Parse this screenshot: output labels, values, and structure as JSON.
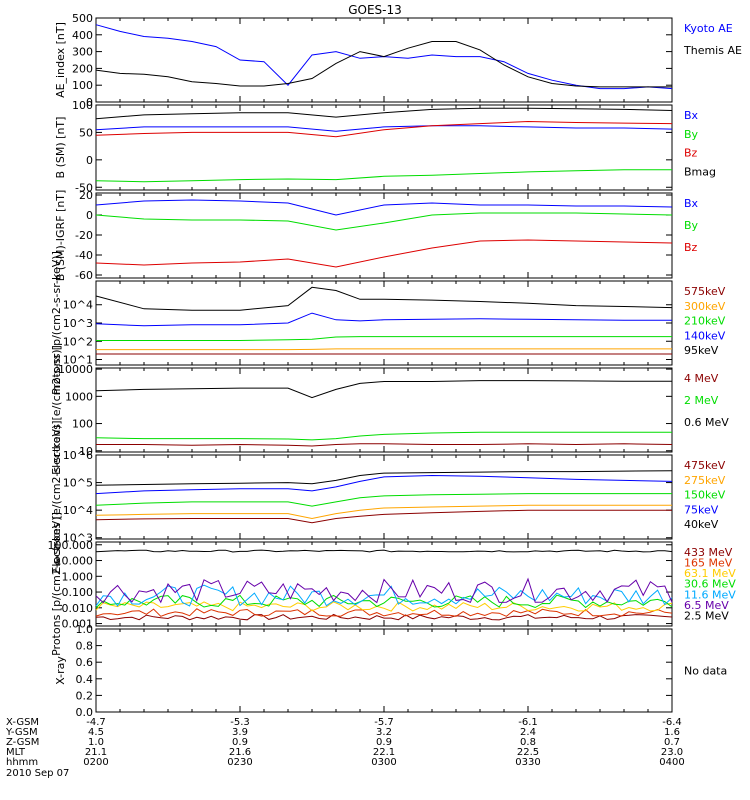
{
  "title": "GOES-13",
  "chart_data": [
    {
      "type": "line",
      "ylabel": "AE_index [nT]",
      "scale": "linear",
      "ylim": [
        0,
        500
      ],
      "yticks": [
        0,
        100,
        200,
        300,
        400,
        500
      ],
      "yticklabels": [
        "0",
        "100",
        "200",
        "300",
        "400",
        "500"
      ],
      "x": [
        0,
        5,
        10,
        15,
        20,
        25,
        30,
        35,
        40,
        45,
        50,
        55,
        60,
        65,
        70,
        75,
        80,
        85,
        90,
        95,
        100,
        105,
        110,
        115,
        120
      ],
      "series": [
        {
          "name": "Kyoto AE",
          "color": "#0000ff",
          "values": [
            460,
            420,
            390,
            380,
            360,
            330,
            250,
            240,
            100,
            280,
            300,
            260,
            270,
            260,
            280,
            270,
            270,
            240,
            170,
            130,
            100,
            80,
            80,
            90,
            80
          ]
        },
        {
          "name": "Themis AE",
          "color": "#000000",
          "values": [
            190,
            170,
            165,
            150,
            120,
            110,
            95,
            95,
            110,
            140,
            230,
            300,
            270,
            320,
            360,
            360,
            310,
            220,
            150,
            110,
            95,
            90,
            90,
            90,
            90
          ]
        }
      ]
    },
    {
      "type": "line",
      "ylabel": "B (SM) [nT]",
      "scale": "linear",
      "ylim": [
        -55,
        100
      ],
      "yticks": [
        -50,
        0,
        50,
        100
      ],
      "yticklabels": [
        "-50",
        "0",
        "50",
        "100"
      ],
      "x": [
        0,
        10,
        20,
        30,
        40,
        50,
        60,
        70,
        80,
        90,
        100,
        110,
        120
      ],
      "series": [
        {
          "name": "Bx",
          "color": "#0000ff",
          "values": [
            55,
            60,
            60,
            60,
            60,
            52,
            60,
            62,
            62,
            60,
            58,
            58,
            56
          ]
        },
        {
          "name": "By",
          "color": "#00dd00",
          "values": [
            -38,
            -40,
            -38,
            -36,
            -35,
            -36,
            -30,
            -28,
            -25,
            -22,
            -20,
            -18,
            -18
          ]
        },
        {
          "name": "Bz",
          "color": "#dd0000",
          "values": [
            45,
            48,
            50,
            50,
            50,
            42,
            55,
            62,
            66,
            70,
            68,
            67,
            66
          ]
        },
        {
          "name": "Bmag",
          "color": "#000000",
          "values": [
            75,
            82,
            84,
            86,
            86,
            78,
            86,
            92,
            94,
            94,
            93,
            92,
            90
          ]
        }
      ]
    },
    {
      "type": "line",
      "ylabel": "B (SM)-IGRF [nT]",
      "scale": "linear",
      "ylim": [
        -63,
        22
      ],
      "yticks": [
        -60,
        -40,
        -20,
        0,
        20
      ],
      "yticklabels": [
        "-60",
        "-40",
        "-20",
        "0",
        "20"
      ],
      "x": [
        0,
        10,
        20,
        30,
        40,
        50,
        60,
        70,
        80,
        90,
        100,
        110,
        120
      ],
      "series": [
        {
          "name": "Bx",
          "color": "#0000ff",
          "values": [
            10,
            14,
            15,
            14,
            12,
            0,
            10,
            12,
            10,
            10,
            9,
            9,
            8
          ]
        },
        {
          "name": "By",
          "color": "#00dd00",
          "values": [
            0,
            -4,
            -5,
            -5,
            -6,
            -15,
            -8,
            0,
            2,
            2,
            2,
            1,
            0
          ]
        },
        {
          "name": "Bz",
          "color": "#dd0000",
          "values": [
            -48,
            -50,
            -48,
            -47,
            -44,
            -52,
            -42,
            -33,
            -26,
            -25,
            -26,
            -27,
            -28
          ]
        }
      ]
    },
    {
      "type": "line",
      "ylabel": "Protons [p/(cm2-s-sr-keV)]",
      "scale": "log",
      "ylim": [
        5,
        200000
      ],
      "yticks": [
        10,
        100,
        1000,
        10000
      ],
      "yticklabels": [
        "10^1",
        "10^2",
        "10^3",
        "10^4"
      ],
      "x": [
        0,
        10,
        20,
        30,
        40,
        45,
        50,
        55,
        60,
        70,
        80,
        90,
        100,
        110,
        120
      ],
      "series": [
        {
          "name": "575keV",
          "color": "#8b0000",
          "values": [
            20,
            20,
            20,
            20,
            20,
            20,
            20,
            20,
            20,
            20,
            20,
            20,
            20,
            20,
            20
          ]
        },
        {
          "name": "300keV",
          "color": "#ffa500",
          "values": [
            35,
            35,
            35,
            35,
            35,
            36,
            38,
            38,
            38,
            38,
            38,
            38,
            38,
            38,
            38
          ]
        },
        {
          "name": "210keV",
          "color": "#00dd00",
          "values": [
            110,
            110,
            110,
            110,
            120,
            130,
            170,
            180,
            180,
            180,
            180,
            180,
            180,
            180,
            180
          ]
        },
        {
          "name": "140keV",
          "color": "#0000ff",
          "values": [
            900,
            700,
            800,
            800,
            1000,
            3500,
            1500,
            1300,
            1500,
            1600,
            1700,
            1600,
            1500,
            1400,
            1400
          ]
        },
        {
          "name": "95keV",
          "color": "#000000",
          "values": [
            30000,
            6000,
            5000,
            5000,
            9000,
            90000,
            60000,
            20000,
            20000,
            18000,
            15000,
            12000,
            9000,
            8000,
            7000
          ]
        }
      ]
    },
    {
      "type": "line",
      "ylabel": "Electrons [e/(cm2-s-sr)]",
      "scale": "log",
      "ylim": [
        9,
        11000
      ],
      "yticks": [
        10,
        100,
        1000,
        10000
      ],
      "yticklabels": [
        "10",
        "100",
        "1000",
        "10000"
      ],
      "x": [
        0,
        10,
        20,
        30,
        40,
        45,
        50,
        55,
        60,
        70,
        80,
        90,
        100,
        110,
        120
      ],
      "series": [
        {
          "name": "4 MeV",
          "color": "#8b0000",
          "values": [
            17,
            17,
            16,
            17,
            16,
            15,
            17,
            18,
            18,
            17,
            17,
            18,
            17,
            18,
            17
          ]
        },
        {
          "name": "2 MeV",
          "color": "#00dd00",
          "values": [
            30,
            28,
            28,
            28,
            27,
            25,
            28,
            35,
            40,
            45,
            48,
            48,
            48,
            48,
            48
          ]
        },
        {
          "name": "0.6 MeV",
          "color": "#000000",
          "values": [
            1600,
            1800,
            1900,
            2000,
            2000,
            900,
            1800,
            3000,
            3500,
            3500,
            3800,
            3800,
            3700,
            3600,
            3600
          ]
        }
      ]
    },
    {
      "type": "line",
      "ylabel": "Electrons [e/(cm2-s-sr-keV)]",
      "scale": "log",
      "ylim": [
        900,
        1000000
      ],
      "yticks": [
        1000,
        10000,
        100000,
        1000000
      ],
      "yticklabels": [
        "10^3",
        "10^4",
        "10^5",
        "10^6"
      ],
      "x": [
        0,
        10,
        20,
        30,
        40,
        45,
        50,
        55,
        60,
        70,
        80,
        90,
        100,
        110,
        120
      ],
      "series": [
        {
          "name": "475keV",
          "color": "#8b0000",
          "values": [
            4500,
            4800,
            5000,
            5000,
            5000,
            3500,
            5000,
            6000,
            7000,
            8000,
            9000,
            10000,
            10000,
            10000,
            10000
          ]
        },
        {
          "name": "275keV",
          "color": "#ffa500",
          "values": [
            6500,
            7000,
            7500,
            7500,
            7500,
            5000,
            7500,
            10000,
            12000,
            13000,
            14000,
            15000,
            15000,
            15000,
            15000
          ]
        },
        {
          "name": "150keV",
          "color": "#00dd00",
          "values": [
            15000,
            18000,
            20000,
            20000,
            20000,
            14000,
            20000,
            28000,
            33000,
            36000,
            38000,
            40000,
            40000,
            40000,
            40000
          ]
        },
        {
          "name": "75keV",
          "color": "#0000ff",
          "values": [
            40000,
            50000,
            55000,
            60000,
            60000,
            50000,
            70000,
            110000,
            160000,
            180000,
            170000,
            150000,
            130000,
            120000,
            110000
          ]
        },
        {
          "name": "40keV",
          "color": "#000000",
          "values": [
            80000,
            85000,
            90000,
            95000,
            100000,
            90000,
            120000,
            180000,
            220000,
            230000,
            240000,
            250000,
            250000,
            260000,
            270000
          ]
        }
      ]
    },
    {
      "type": "line",
      "ylabel": "Protons [p/(cm2-s-sr-keV)]",
      "scale": "log",
      "ylim": [
        0.0007,
        150
      ],
      "yticks": [
        0.001,
        0.01,
        0.1,
        1,
        10,
        100
      ],
      "yticklabels": [
        "0.001",
        "0.010",
        "0.100",
        "1.000",
        "10.000",
        "100.000"
      ],
      "noisy": true,
      "series": [
        {
          "name": "433 MeV",
          "color": "#8b0000",
          "level": 0.0025,
          "noise": 0.06
        },
        {
          "name": "165 MeV",
          "color": "#dd3300",
          "level": 0.005,
          "noise": 0.08
        },
        {
          "name": "63.1 MeV",
          "color": "#ffcc00",
          "level": 0.012,
          "noise": 0.1
        },
        {
          "name": "30.6 MeV",
          "color": "#00dd00",
          "level": 0.025,
          "noise": 0.14
        },
        {
          "name": "11.6 MeV",
          "color": "#00aaff",
          "level": 0.06,
          "noise": 0.22
        },
        {
          "name": "6.5 MeV",
          "color": "#6600aa",
          "level": 0.12,
          "noise": 0.25
        },
        {
          "name": "2.5 MeV",
          "color": "#000000",
          "level": 40,
          "noise": 0.02
        }
      ]
    },
    {
      "type": "line",
      "ylabel": "X-ray",
      "scale": "linear",
      "ylim": [
        0,
        1
      ],
      "yticks": [
        0,
        0.2,
        0.4,
        0.6,
        0.8,
        1.0
      ],
      "yticklabels": [
        "0.0",
        "0.2",
        "0.4",
        "0.6",
        "0.8",
        "1.0"
      ],
      "series": [],
      "note": "No data"
    }
  ],
  "xaxis": {
    "row_labels": [
      "X-GSM",
      "Y-GSM",
      "Z-GSM",
      "MLT",
      "hhmm"
    ],
    "date": "2010 Sep 07",
    "columns": [
      [
        "-4.7",
        "4.5",
        "1.0",
        "21.1",
        "0200"
      ],
      [
        "-5.3",
        "3.9",
        "0.9",
        "21.6",
        "0230"
      ],
      [
        "-5.7",
        "3.2",
        "0.9",
        "22.1",
        "0300"
      ],
      [
        "-6.1",
        "2.4",
        "0.8",
        "22.5",
        "0330"
      ],
      [
        "-6.4",
        "1.6",
        "0.7",
        "23.0",
        "0400"
      ]
    ]
  }
}
